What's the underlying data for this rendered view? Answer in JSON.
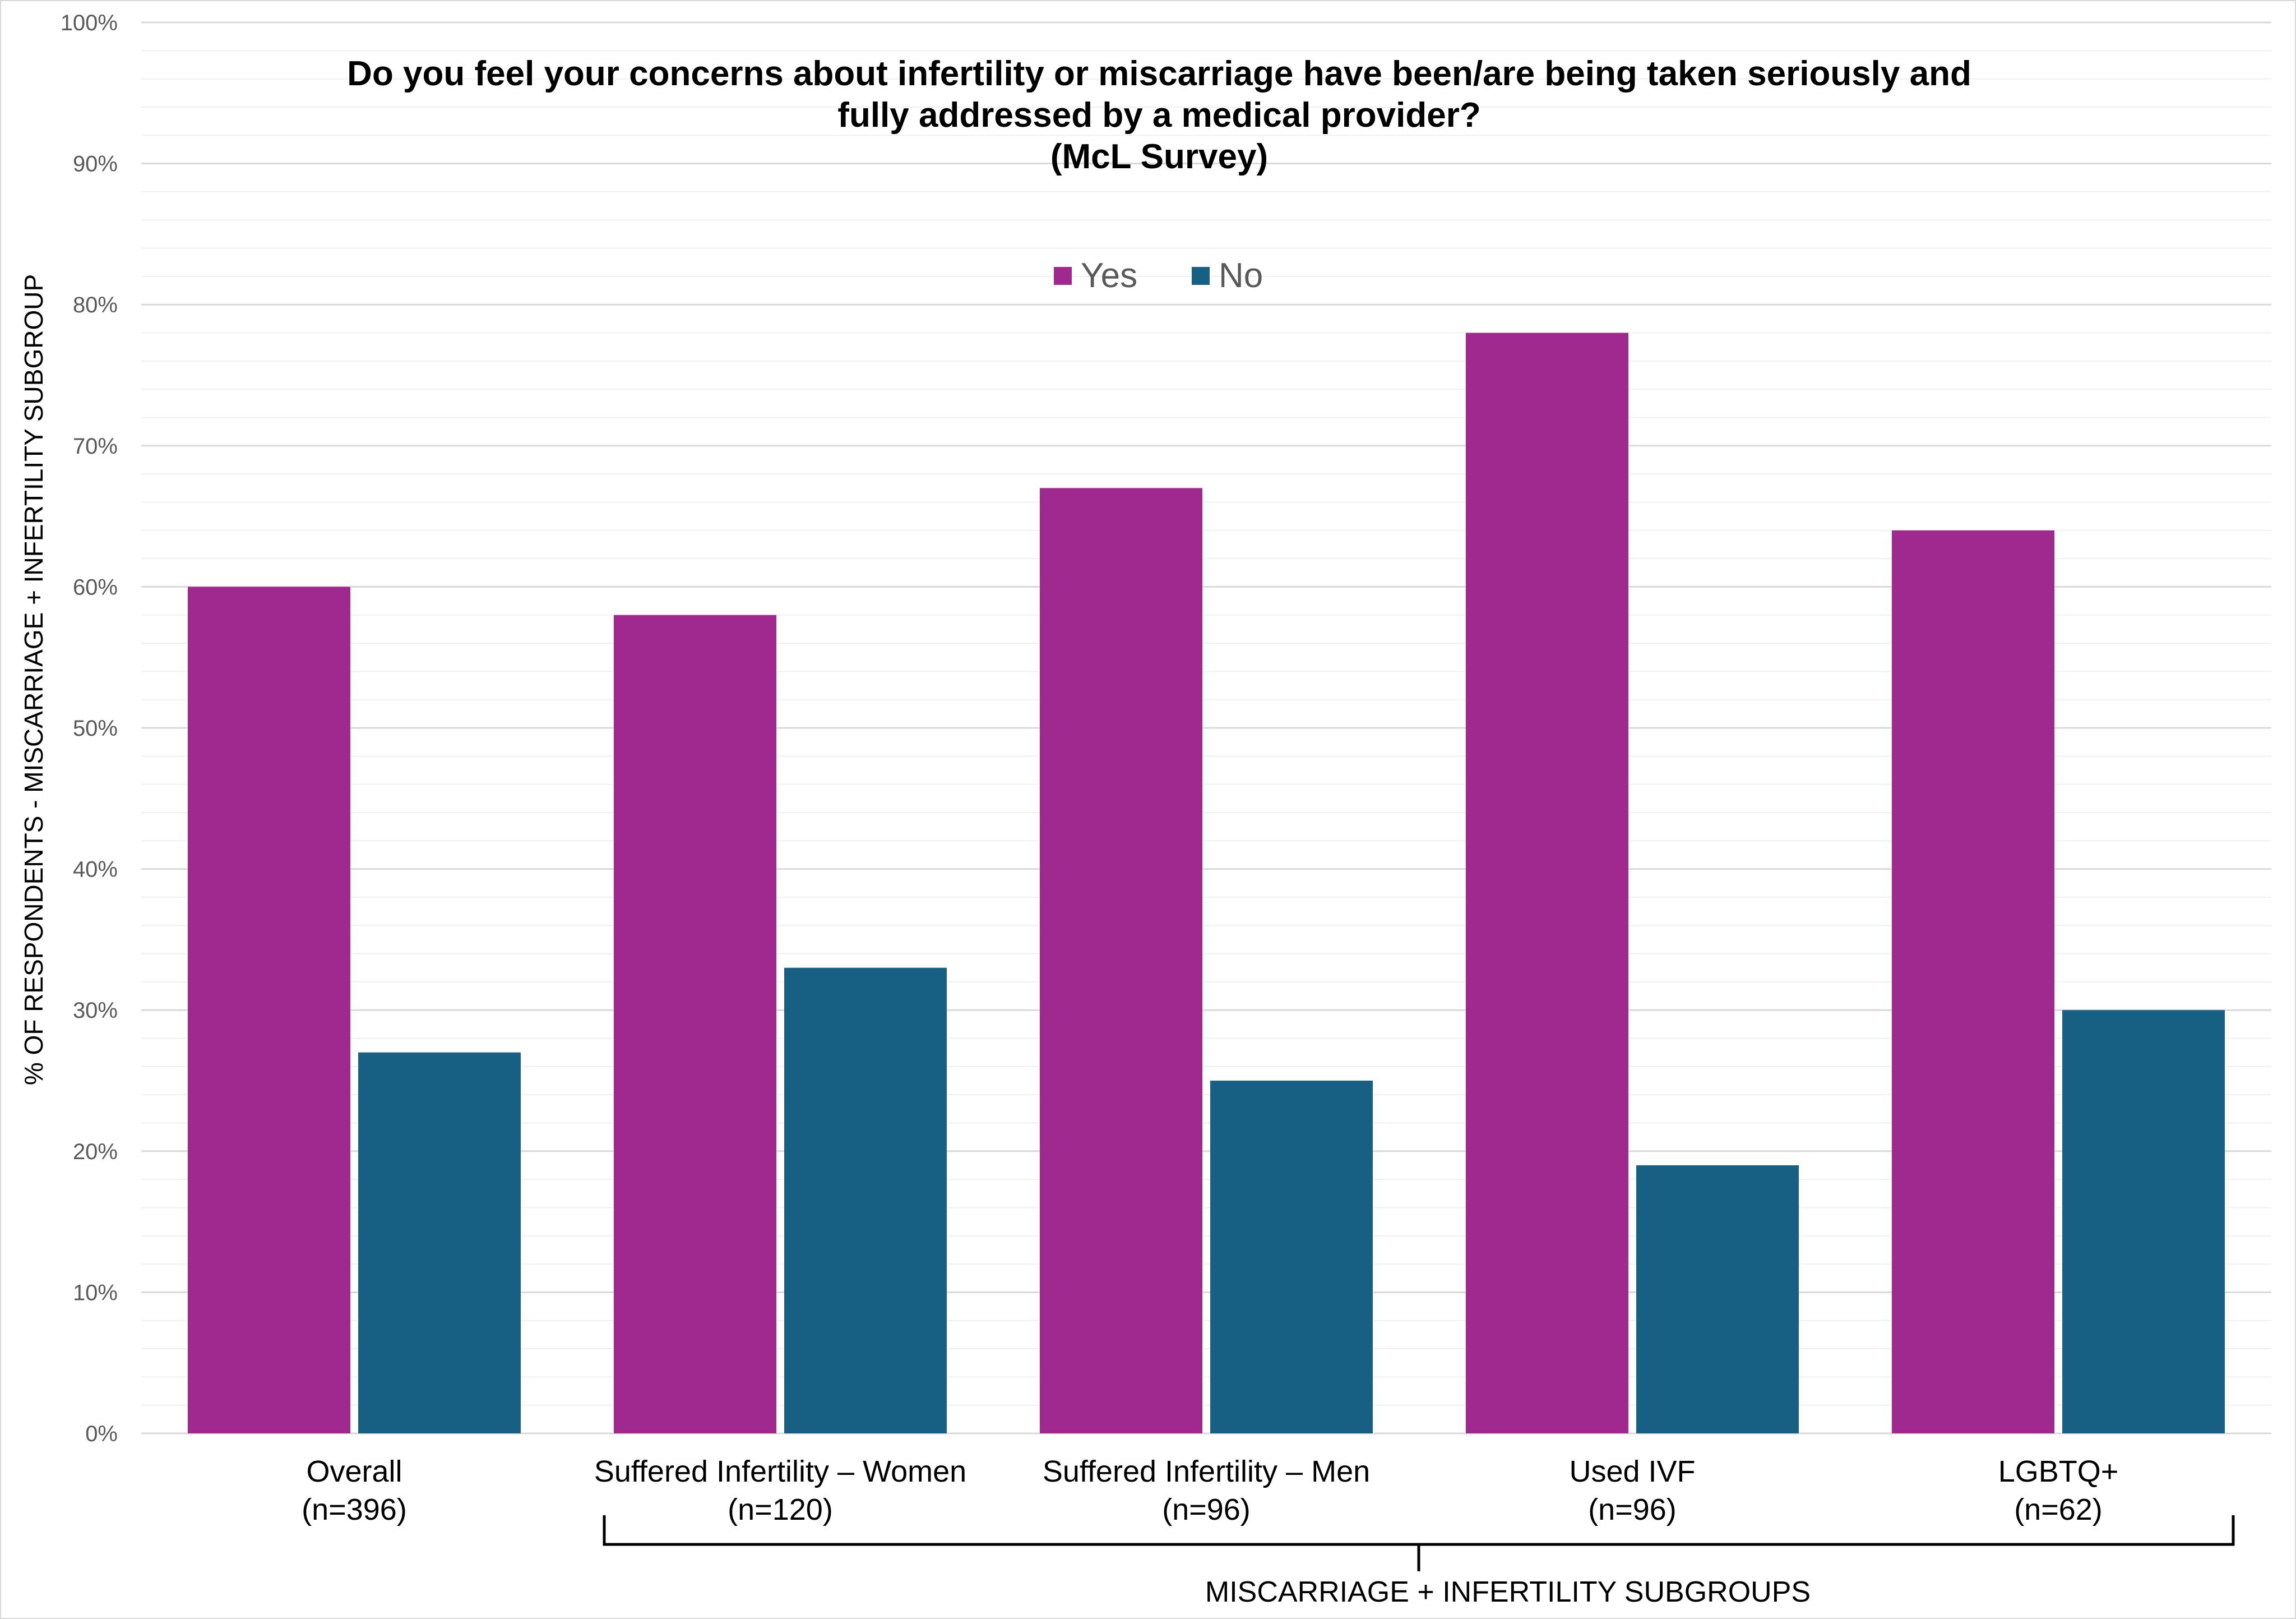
{
  "chart_data": {
    "type": "bar",
    "title_lines": [
      "Do you feel your concerns about infertility or miscarriage have been/are being taken seriously and",
      "fully addressed by a medical provider?",
      "(McL Survey)"
    ],
    "ylabel": "% OF RESPONDENTS - MISCARRIAGE + INFERTILITY SUBGROUP",
    "ylim": [
      0,
      100
    ],
    "yticks": [
      "0%",
      "10%",
      "20%",
      "30%",
      "40%",
      "50%",
      "60%",
      "70%",
      "80%",
      "90%",
      "100%"
    ],
    "grid": true,
    "legend_position": "top-center",
    "categories": [
      {
        "name": "Overall",
        "n": "(n=396)"
      },
      {
        "name": "Suffered Infertility –  Women",
        "n": "(n=120)"
      },
      {
        "name": "Suffered Infertility – Men",
        "n": "(n=96)"
      },
      {
        "name": "Used IVF",
        "n": "(n=96)"
      },
      {
        "name": "LGBTQ+",
        "n": "(n=62)"
      }
    ],
    "series": [
      {
        "name": "Yes",
        "color": "#a0298f",
        "values": [
          60,
          58,
          67,
          78,
          64
        ]
      },
      {
        "name": "No",
        "color": "#176083",
        "values": [
          27,
          33,
          25,
          19,
          30
        ]
      }
    ],
    "group_bracket_label": "MISCARRIAGE + INFERTILITY SUBGROUPS"
  }
}
